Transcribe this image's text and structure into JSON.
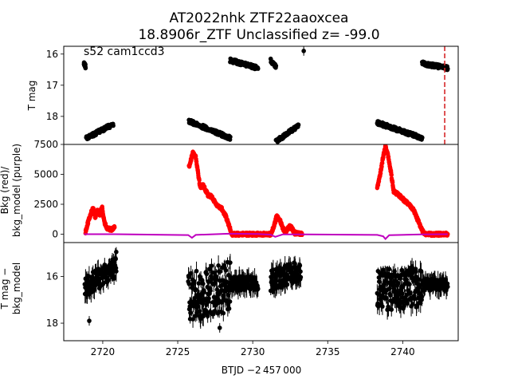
{
  "title": {
    "line1": "AT2022nhk  ZTF22aaoxcea",
    "line2": "18.8906r_ZTF Unclassified z= -99.0"
  },
  "colors": {
    "lightcurve": "#000000",
    "bkg": "#ff0000",
    "bkg_model": "#bf00bf",
    "marker_line": "#d62728"
  },
  "chart_data": [
    {
      "type": "scatter",
      "panel": "top",
      "annotation": "s52 cam1ccd3",
      "ylabel": "T mag",
      "yinvert": true,
      "xlim": [
        2717.4,
        2743.7
      ],
      "ylim": [
        18.9,
        15.75
      ],
      "yticks": [
        16,
        17,
        18
      ],
      "vline_x": 2742.8,
      "segments": [
        {
          "x0": 2718.75,
          "x1": 2718.85,
          "y0": 16.3,
          "y1": 16.4
        },
        {
          "x0": 2718.9,
          "x1": 2720.7,
          "y0": 18.7,
          "y1": 18.25
        },
        {
          "x0": 2725.75,
          "x1": 2728.5,
          "y0": 18.15,
          "y1": 18.7
        },
        {
          "x0": 2728.5,
          "x1": 2730.35,
          "y0": 16.2,
          "y1": 16.45
        },
        {
          "x0": 2731.2,
          "x1": 2731.55,
          "y0": 16.2,
          "y1": 16.4
        },
        {
          "x0": 2731.55,
          "x1": 2733.05,
          "y0": 18.8,
          "y1": 18.3
        },
        {
          "x0": 2738.3,
          "x1": 2741.3,
          "y0": 18.2,
          "y1": 18.7
        },
        {
          "x0": 2741.3,
          "x1": 2743.0,
          "y0": 16.3,
          "y1": 16.45
        }
      ],
      "points": [
        {
          "x": 2733.4,
          "y": 15.9
        }
      ]
    },
    {
      "type": "scatter",
      "panel": "middle",
      "ylabel_lines": [
        "Bkg (red)/",
        "bkg_model (purple)"
      ],
      "xlim": [
        2717.4,
        2743.7
      ],
      "ylim": [
        -700,
        7500
      ],
      "yticks": [
        0,
        2500,
        5000,
        7500
      ],
      "bkg_points": [
        [
          2718.85,
          200
        ],
        [
          2719.0,
          900
        ],
        [
          2719.2,
          1700
        ],
        [
          2719.35,
          2200
        ],
        [
          2719.5,
          1400
        ],
        [
          2719.65,
          2000
        ],
        [
          2719.8,
          1600
        ],
        [
          2719.95,
          2300
        ],
        [
          2720.1,
          1000
        ],
        [
          2720.3,
          500
        ],
        [
          2720.6,
          350
        ],
        [
          2720.8,
          700
        ],
        [
          2725.75,
          5600
        ],
        [
          2725.9,
          6300
        ],
        [
          2726.0,
          6800
        ],
        [
          2726.2,
          6500
        ],
        [
          2726.35,
          5200
        ],
        [
          2726.5,
          3900
        ],
        [
          2726.7,
          4100
        ],
        [
          2727.0,
          3300
        ],
        [
          2727.3,
          3100
        ],
        [
          2727.6,
          2400
        ],
        [
          2727.9,
          2200
        ],
        [
          2728.2,
          1500
        ],
        [
          2728.45,
          600
        ],
        [
          2728.6,
          0
        ],
        [
          2729.3,
          0
        ],
        [
          2730.35,
          0
        ],
        [
          2731.2,
          0
        ],
        [
          2731.4,
          600
        ],
        [
          2731.6,
          1500
        ],
        [
          2731.8,
          1200
        ],
        [
          2732.0,
          500
        ],
        [
          2732.2,
          200
        ],
        [
          2732.5,
          700
        ],
        [
          2732.8,
          100
        ],
        [
          2733.3,
          0
        ],
        [
          2738.3,
          3800
        ],
        [
          2738.5,
          5000
        ],
        [
          2738.7,
          6500
        ],
        [
          2738.85,
          7300
        ],
        [
          2739.0,
          6700
        ],
        [
          2739.2,
          5300
        ],
        [
          2739.4,
          3600
        ],
        [
          2739.8,
          3200
        ],
        [
          2740.3,
          2600
        ],
        [
          2740.7,
          2100
        ],
        [
          2741.0,
          1200
        ],
        [
          2741.3,
          300
        ],
        [
          2741.5,
          0
        ],
        [
          2742.4,
          0
        ],
        [
          2743.0,
          0
        ]
      ],
      "bkg_model_line": [
        [
          2718.75,
          0
        ],
        [
          2720.8,
          0
        ],
        [
          2725.7,
          -70
        ],
        [
          2725.95,
          -300
        ],
        [
          2726.2,
          -60
        ],
        [
          2728.4,
          40
        ],
        [
          2730.35,
          20
        ],
        [
          2731.2,
          -40
        ],
        [
          2731.5,
          -220
        ],
        [
          2732.0,
          -20
        ],
        [
          2733.3,
          -20
        ],
        [
          2738.3,
          -60
        ],
        [
          2738.7,
          -180
        ],
        [
          2738.85,
          -400
        ],
        [
          2739.1,
          -80
        ],
        [
          2741.3,
          -20
        ],
        [
          2743.0,
          0
        ]
      ]
    },
    {
      "type": "scatter",
      "panel": "bottom",
      "ylabel_lines": [
        "T mag −",
        "bkg_model"
      ],
      "xlabel": "BTJD −2 457 000",
      "yinvert": true,
      "xlim": [
        2717.4,
        2743.7
      ],
      "ylim": [
        18.75,
        14.55
      ],
      "yticks": [
        16,
        18
      ],
      "xticks": [
        2720,
        2725,
        2730,
        2735,
        2740
      ],
      "segments": [
        {
          "x0": 2718.8,
          "x1": 2720.9,
          "y0": 16.5,
          "y1": 15.6,
          "spread": 0.45
        },
        {
          "x0": 2725.7,
          "x1": 2728.5,
          "y0": 16.9,
          "y1": 16.4,
          "spread": 1.1
        },
        {
          "x0": 2728.5,
          "x1": 2730.35,
          "y0": 16.3,
          "y1": 16.3,
          "spread": 0.3
        },
        {
          "x0": 2731.2,
          "x1": 2733.2,
          "y0": 16.2,
          "y1": 15.7,
          "spread": 0.45
        },
        {
          "x0": 2738.3,
          "x1": 2741.3,
          "y0": 16.6,
          "y1": 16.4,
          "spread": 0.9
        },
        {
          "x0": 2741.3,
          "x1": 2743.0,
          "y0": 16.35,
          "y1": 16.35,
          "spread": 0.25
        }
      ],
      "points": [
        {
          "x": 2719.1,
          "y": 17.9
        },
        {
          "x": 2727.8,
          "y": 18.2
        },
        {
          "x": 2720.9,
          "y": 14.95
        }
      ]
    }
  ]
}
